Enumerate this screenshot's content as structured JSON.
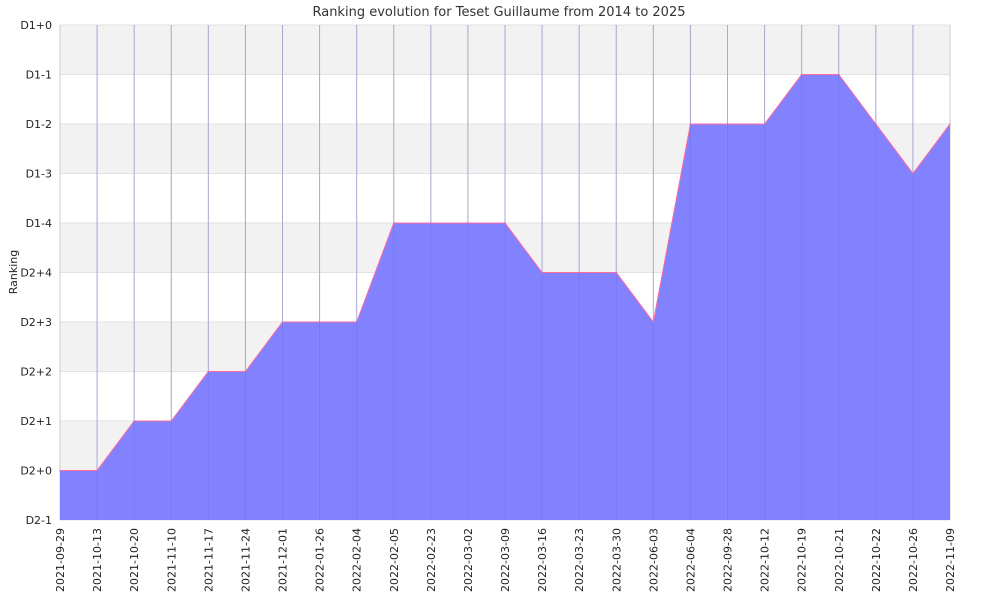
{
  "chart_data": {
    "type": "area",
    "title": "Ranking evolution for Teset Guillaume from 2014 to 2025",
    "xlabel": "",
    "ylabel": "Ranking",
    "x": [
      "2021-09-29",
      "2021-10-13",
      "2021-10-20",
      "2021-11-10",
      "2021-11-17",
      "2021-11-24",
      "2021-12-01",
      "2022-01-26",
      "2022-02-04",
      "2022-02-05",
      "2022-02-23",
      "2022-03-02",
      "2022-03-09",
      "2022-03-16",
      "2022-03-23",
      "2022-03-30",
      "2022-06-03",
      "2022-06-04",
      "2022-09-28",
      "2022-10-12",
      "2022-10-19",
      "2022-10-21",
      "2022-10-22",
      "2022-10-26",
      "2022-11-09"
    ],
    "y_categories": [
      "D2-1",
      "D2+0",
      "D2+1",
      "D2+2",
      "D2+3",
      "D2+4",
      "D1-4",
      "D1-3",
      "D1-2",
      "D1-1",
      "D1+0"
    ],
    "series": [
      {
        "values": [
          "D2+0",
          "D2+0",
          "D2+1",
          "D2+1",
          "D2+2",
          "D2+2",
          "D2+3",
          "D2+3",
          "D2+3",
          "D1-4",
          "D1-4",
          "D1-4",
          "D1-4",
          "D2+4",
          "D2+4",
          "D2+4",
          "D2+3",
          "D1-2",
          "D1-2",
          "D1-2",
          "D1-1",
          "D1-1",
          "D1-2",
          "D1-3",
          "D1-2"
        ],
        "fill_color": "#8080ff",
        "line_color": "#ff6aa0"
      }
    ],
    "grid": true,
    "band_color": "#f2f2f2",
    "grid_color": "#cccccc"
  }
}
